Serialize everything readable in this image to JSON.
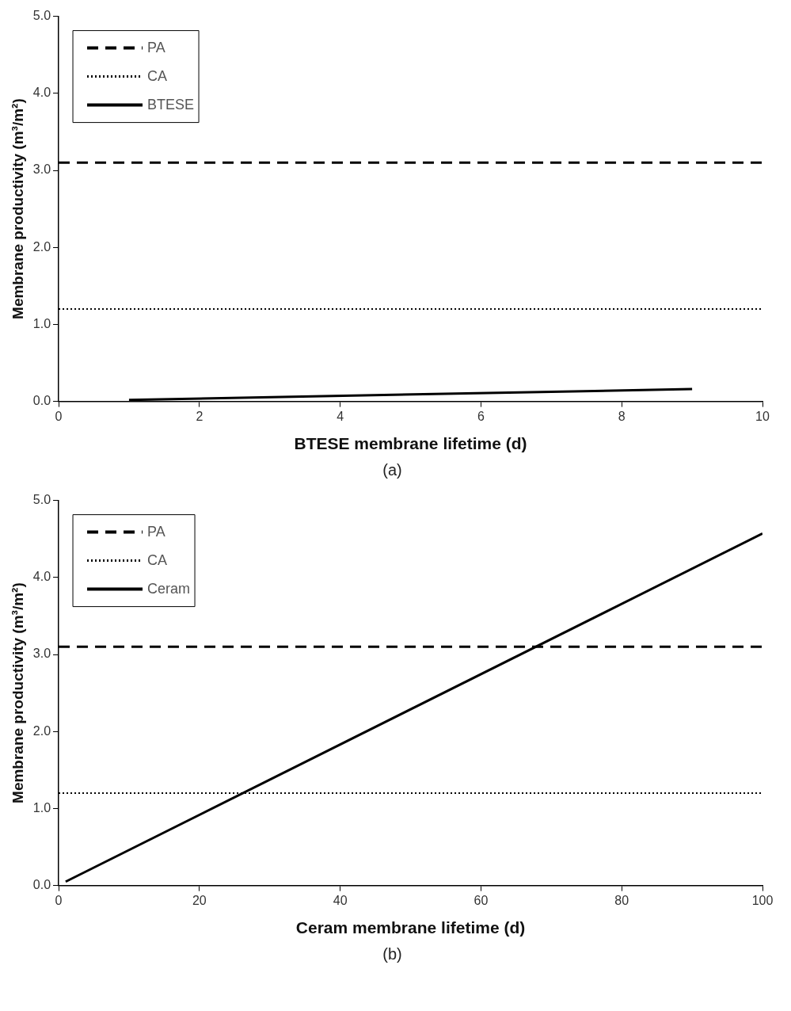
{
  "chart_data": [
    {
      "type": "line",
      "xlabel": "BTESE membrane lifetime (d)",
      "ylabel": "Membrane productivity (m³/m²)",
      "annotations": [
        "(a)"
      ],
      "xlim": [
        0,
        10
      ],
      "xticks": [
        0,
        2,
        4,
        6,
        8,
        10
      ],
      "ylim": [
        0,
        5
      ],
      "yticks": [
        {
          "value": 0,
          "label": "0.0"
        },
        {
          "value": 1,
          "label": "1.0"
        },
        {
          "value": 2,
          "label": "2.0"
        },
        {
          "value": 3,
          "label": "3.0"
        },
        {
          "value": 4,
          "label": "4.0"
        },
        {
          "value": 5,
          "label": "5.0"
        }
      ],
      "legend": "top left",
      "marker": "none",
      "series": [
        {
          "name": "PA",
          "color": "#000000",
          "line_style": "dashed",
          "x": [
            0,
            10
          ],
          "values": [
            3.1,
            3.1
          ]
        },
        {
          "name": "CA",
          "color": "#000000",
          "line_style": "dotted",
          "x": [
            0,
            10
          ],
          "values": [
            1.2,
            1.2
          ]
        },
        {
          "name": "BTESE",
          "color": "#000000",
          "line_style": "solid",
          "x": [
            1,
            9
          ],
          "values": [
            0.02,
            0.16
          ]
        }
      ]
    },
    {
      "type": "line",
      "xlabel": "Ceram membrane lifetime (d)",
      "ylabel": "Membrane productivity (m³/m²)",
      "annotations": [
        "(b)"
      ],
      "xlim": [
        0,
        100
      ],
      "xticks": [
        0,
        20,
        40,
        60,
        80,
        100
      ],
      "ylim": [
        0,
        5
      ],
      "yticks": [
        {
          "value": 0,
          "label": "0.0"
        },
        {
          "value": 1,
          "label": "1.0"
        },
        {
          "value": 2,
          "label": "2.0"
        },
        {
          "value": 3,
          "label": "3.0"
        },
        {
          "value": 4,
          "label": "4.0"
        },
        {
          "value": 5,
          "label": "5.0"
        }
      ],
      "legend": "top left",
      "marker": "none",
      "series": [
        {
          "name": "PA",
          "color": "#000000",
          "line_style": "dashed",
          "x": [
            0,
            100
          ],
          "values": [
            3.1,
            3.1
          ]
        },
        {
          "name": "CA",
          "color": "#000000",
          "line_style": "dotted",
          "x": [
            0,
            100
          ],
          "values": [
            1.2,
            1.2
          ]
        },
        {
          "name": "Ceram",
          "color": "#000000",
          "line_style": "solid",
          "x": [
            1,
            100
          ],
          "values": [
            0.05,
            4.57
          ]
        }
      ]
    }
  ]
}
